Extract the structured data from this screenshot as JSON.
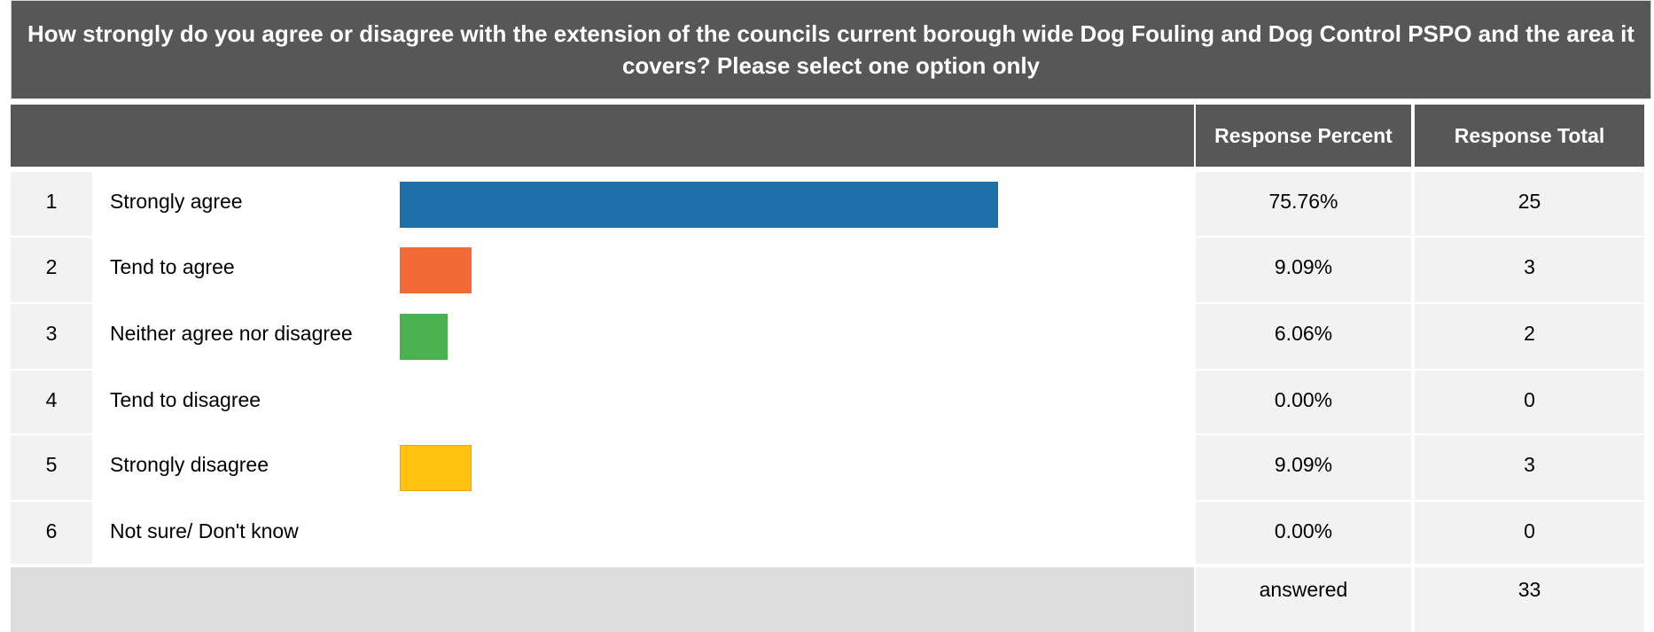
{
  "question": "How strongly do you agree or disagree with the extension of the councils current borough wide Dog Fouling and Dog Control PSPO and the area it covers? Please select one option only",
  "headers": {
    "percent": "Response Percent",
    "total": "Response Total"
  },
  "colors": {
    "header_bg": "#575757",
    "alt_cell": "#f2f2f2",
    "footer_bg": "#dcdcdc"
  },
  "chart_data": {
    "type": "bar",
    "orientation": "horizontal",
    "categories": [
      "Strongly agree",
      "Tend to agree",
      "Neither agree nor disagree",
      "Tend to disagree",
      "Strongly disagree",
      "Not sure/ Don't know"
    ],
    "values": [
      75.76,
      9.09,
      6.06,
      0.0,
      9.09,
      0.0
    ],
    "xlim": [
      0,
      100
    ],
    "rows": [
      {
        "num": "1",
        "label": "Strongly agree",
        "percent": 75.76,
        "percent_text": "75.76%",
        "total": "25",
        "color": "#1f6fa8",
        "border": "#1f6fa8"
      },
      {
        "num": "2",
        "label": "Tend to agree",
        "percent": 9.09,
        "percent_text": "9.09%",
        "total": "3",
        "color": "#f26a36",
        "border": "#f26a36"
      },
      {
        "num": "3",
        "label": "Neither agree nor disagree",
        "percent": 6.06,
        "percent_text": "6.06%",
        "total": "2",
        "color": "#4bb04f",
        "border": "#4bb04f"
      },
      {
        "num": "4",
        "label": "Tend to disagree",
        "percent": 0.0,
        "percent_text": "0.00%",
        "total": "0",
        "color": "#8e44ad",
        "border": "#8e44ad"
      },
      {
        "num": "5",
        "label": "Strongly disagree",
        "percent": 9.09,
        "percent_text": "9.09%",
        "total": "3",
        "color": "#ffc20e",
        "border": "#f0a500"
      },
      {
        "num": "6",
        "label": "Not sure/ Don't know",
        "percent": 0.0,
        "percent_text": "0.00%",
        "total": "0",
        "color": "#999999",
        "border": "#999999"
      }
    ]
  },
  "footer": {
    "label": "answered",
    "total": "33"
  }
}
